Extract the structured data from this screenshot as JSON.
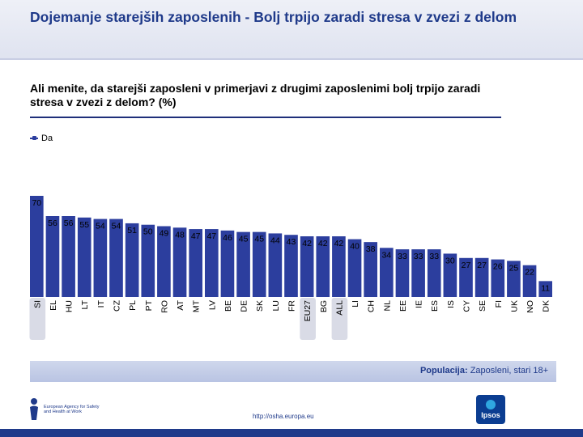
{
  "header": {
    "title": "Dojemanje starejših zaposlenih - Bolj trpijo zaradi stresa v zvezi z delom"
  },
  "question": "Ali menite, da starejši zaposleni v primerjavi z drugimi zaposlenimi bolj trpijo zaradi stresa v zvezi z delom? (%)",
  "population": {
    "label": "Populacija:",
    "value": "Zaposleni, stari 18+"
  },
  "footer": {
    "url": "http://osha.europa.eu",
    "osha_logo_text": "European Agency for Safety and Health at Work",
    "ipsos_logo_text": "Ipsos"
  },
  "colors": {
    "bar": "#2c3e9e",
    "highlight": "#d9dbe6",
    "title": "#1f3a8a"
  },
  "chart_data": {
    "type": "bar",
    "series": [
      {
        "name": "Da",
        "values": [
          70,
          56,
          56,
          55,
          54,
          54,
          51,
          50,
          49,
          48,
          47,
          47,
          46,
          45,
          45,
          44,
          43,
          42,
          42,
          42,
          40,
          38,
          34,
          33,
          33,
          33,
          30,
          27,
          27,
          26,
          25,
          22,
          11
        ]
      }
    ],
    "categories": [
      "SI",
      "EL",
      "HU",
      "LT",
      "IT",
      "CZ",
      "PL",
      "PT",
      "RO",
      "AT",
      "MT",
      "LV",
      "BE",
      "DE",
      "SK",
      "LU",
      "FR",
      "EU27",
      "BG",
      "ALL",
      "LI",
      "CH",
      "NL",
      "EE",
      "IE",
      "ES",
      "IS",
      "CY",
      "SE",
      "FI",
      "UK",
      "NO",
      "DK"
    ],
    "highlighted": [
      "SI",
      "EU27",
      "ALL"
    ],
    "ylim": [
      0,
      70
    ],
    "legend": "top-left",
    "grid": false
  }
}
